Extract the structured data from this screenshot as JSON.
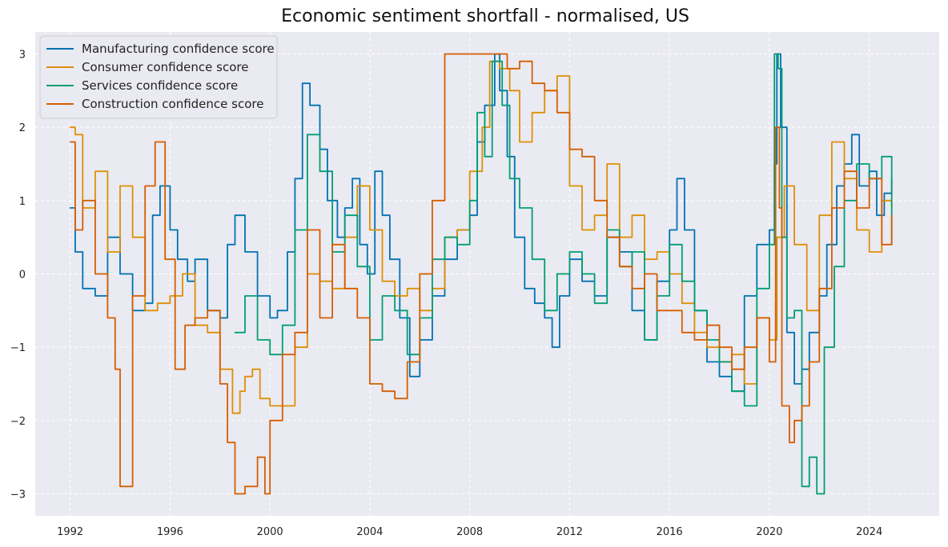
{
  "chart_data": {
    "type": "line",
    "title": "Economic sentiment shortfall - normalised, US",
    "xlabel": "",
    "ylabel": "",
    "xlim": [
      1990.6,
      2026.8
    ],
    "ylim": [
      -3.3,
      3.3
    ],
    "x_ticks": [
      1992,
      1996,
      2000,
      2004,
      2008,
      2012,
      2016,
      2020,
      2024
    ],
    "y_ticks": [
      3,
      2,
      1,
      0,
      -1,
      -2,
      -3
    ],
    "y_tick_labels": [
      "3",
      "2",
      "1",
      "0",
      "−1",
      "−2",
      "−3"
    ],
    "grid": true,
    "legend_position": "top-left",
    "background_color": "#eaeaf2",
    "series": [
      {
        "name": "Manufacturing confidence score",
        "color": "#0072b2",
        "x": [
          1992.0,
          1992.2,
          1992.5,
          1993.0,
          1993.5,
          1994.0,
          1994.5,
          1995.0,
          1995.3,
          1995.6,
          1996.0,
          1996.3,
          1996.7,
          1997.0,
          1997.5,
          1998.0,
          1998.3,
          1998.6,
          1999.0,
          1999.5,
          2000.0,
          2000.3,
          2000.7,
          2001.0,
          2001.3,
          2001.6,
          2002.0,
          2002.3,
          2002.7,
          2003.0,
          2003.3,
          2003.6,
          2003.9,
          2004.2,
          2004.5,
          2004.8,
          2005.2,
          2005.6,
          2006.0,
          2006.5,
          2007.0,
          2007.5,
          2008.0,
          2008.3,
          2008.6,
          2009.0,
          2009.2,
          2009.5,
          2009.8,
          2010.2,
          2010.6,
          2011.0,
          2011.3,
          2011.6,
          2012.0,
          2012.5,
          2013.0,
          2013.5,
          2014.0,
          2014.5,
          2015.0,
          2015.5,
          2016.0,
          2016.3,
          2016.6,
          2017.0,
          2017.5,
          2018.0,
          2018.5,
          2019.0,
          2019.5,
          2020.0,
          2020.2,
          2020.3,
          2020.45,
          2020.7,
          2021.0,
          2021.3,
          2021.6,
          2022.0,
          2022.3,
          2022.7,
          2023.0,
          2023.3,
          2023.6,
          2024.0,
          2024.3,
          2024.6,
          2024.9
        ],
        "values": [
          0.9,
          0.3,
          -0.2,
          -0.3,
          0.5,
          0.0,
          -0.5,
          -0.4,
          0.8,
          1.2,
          0.6,
          0.2,
          -0.1,
          0.2,
          -0.5,
          -0.6,
          0.4,
          0.8,
          0.3,
          -0.3,
          -0.6,
          -0.5,
          0.3,
          1.3,
          2.6,
          2.3,
          1.7,
          1.0,
          0.5,
          0.9,
          1.3,
          0.4,
          0.0,
          1.4,
          0.8,
          0.2,
          -0.6,
          -1.4,
          -0.9,
          -0.3,
          0.2,
          0.6,
          0.8,
          1.8,
          2.3,
          3.0,
          2.5,
          1.6,
          0.5,
          -0.2,
          -0.4,
          -0.6,
          -1.0,
          -0.3,
          0.2,
          -0.1,
          -0.3,
          0.5,
          0.3,
          -0.5,
          -0.9,
          -0.1,
          0.6,
          1.3,
          0.6,
          -0.5,
          -1.2,
          -1.4,
          -1.6,
          -0.3,
          0.4,
          0.6,
          1.5,
          3.0,
          2.0,
          -0.8,
          -1.5,
          -1.3,
          -0.8,
          -0.3,
          0.4,
          1.2,
          1.5,
          1.9,
          1.2,
          1.4,
          0.8,
          1.1,
          1.3
        ]
      },
      {
        "name": "Consumer confidence score",
        "color": "#de8f05",
        "x": [
          1992.0,
          1992.2,
          1992.5,
          1993.0,
          1993.5,
          1994.0,
          1994.5,
          1995.0,
          1995.5,
          1996.0,
          1996.5,
          1997.0,
          1997.5,
          1998.0,
          1998.5,
          1998.8,
          1999.0,
          1999.3,
          1999.6,
          2000.0,
          2000.5,
          2001.0,
          2001.5,
          2002.0,
          2002.5,
          2003.0,
          2003.5,
          2004.0,
          2004.5,
          2005.0,
          2005.5,
          2006.0,
          2006.5,
          2007.0,
          2007.5,
          2008.0,
          2008.5,
          2008.8,
          2009.2,
          2009.6,
          2010.0,
          2010.5,
          2011.0,
          2011.5,
          2012.0,
          2012.5,
          2013.0,
          2013.5,
          2014.0,
          2014.5,
          2015.0,
          2015.5,
          2016.0,
          2016.5,
          2017.0,
          2017.5,
          2018.0,
          2018.5,
          2019.0,
          2019.5,
          2020.0,
          2020.3,
          2020.6,
          2021.0,
          2021.5,
          2022.0,
          2022.5,
          2023.0,
          2023.5,
          2024.0,
          2024.5,
          2024.9
        ],
        "values": [
          2.0,
          1.9,
          0.9,
          1.4,
          0.3,
          1.2,
          0.5,
          -0.5,
          -0.4,
          -0.3,
          0.0,
          -0.7,
          -0.8,
          -1.3,
          -1.9,
          -1.6,
          -1.4,
          -1.3,
          -1.7,
          -1.8,
          -1.8,
          -1.0,
          0.0,
          -0.1,
          -0.2,
          0.5,
          1.2,
          0.6,
          -0.1,
          -0.3,
          -0.2,
          -0.5,
          -0.2,
          0.5,
          0.6,
          1.4,
          2.0,
          2.9,
          2.8,
          2.5,
          1.8,
          2.2,
          2.5,
          2.7,
          1.2,
          0.6,
          0.8,
          1.5,
          0.5,
          0.8,
          0.2,
          0.3,
          0.0,
          -0.4,
          -0.8,
          -1.0,
          -1.2,
          -1.1,
          -1.5,
          -0.6,
          -0.9,
          0.5,
          1.2,
          0.4,
          -0.5,
          0.8,
          1.8,
          1.3,
          0.6,
          0.3,
          1.0,
          0.9
        ]
      },
      {
        "name": "Services confidence score",
        "color": "#029e73",
        "x": [
          1998.6,
          1999.0,
          1999.5,
          2000.0,
          2000.5,
          2001.0,
          2001.5,
          2002.0,
          2002.5,
          2003.0,
          2003.5,
          2004.0,
          2004.5,
          2005.0,
          2005.5,
          2006.0,
          2006.5,
          2007.0,
          2007.5,
          2008.0,
          2008.3,
          2008.6,
          2008.9,
          2009.3,
          2009.6,
          2010.0,
          2010.5,
          2011.0,
          2011.5,
          2012.0,
          2012.5,
          2013.0,
          2013.5,
          2014.0,
          2014.5,
          2015.0,
          2015.5,
          2016.0,
          2016.5,
          2017.0,
          2017.5,
          2018.0,
          2018.5,
          2019.0,
          2019.5,
          2020.0,
          2020.2,
          2020.35,
          2020.5,
          2020.7,
          2021.0,
          2021.3,
          2021.6,
          2021.9,
          2022.2,
          2022.6,
          2023.0,
          2023.5,
          2024.0,
          2024.5,
          2024.9
        ],
        "values": [
          -0.8,
          -0.3,
          -0.9,
          -1.1,
          -0.7,
          0.6,
          1.9,
          1.4,
          0.3,
          0.8,
          0.1,
          -0.9,
          -0.3,
          -0.5,
          -1.1,
          -0.6,
          0.2,
          0.5,
          0.4,
          1.0,
          2.2,
          1.6,
          2.9,
          2.3,
          1.3,
          0.9,
          0.2,
          -0.5,
          0.0,
          0.3,
          0.0,
          -0.4,
          0.6,
          0.1,
          0.3,
          -0.9,
          -0.3,
          0.4,
          -0.1,
          -0.5,
          -0.9,
          -1.2,
          -1.6,
          -1.8,
          -0.2,
          0.4,
          3.0,
          2.8,
          0.5,
          -0.6,
          -0.5,
          -2.9,
          -2.5,
          -3.0,
          -1.0,
          0.1,
          1.0,
          1.5,
          1.3,
          1.6,
          0.4
        ]
      },
      {
        "name": "Construction confidence score",
        "color": "#d55e00",
        "x": [
          1992.0,
          1992.2,
          1992.5,
          1993.0,
          1993.5,
          1993.8,
          1994.0,
          1994.5,
          1995.0,
          1995.4,
          1995.8,
          1996.2,
          1996.6,
          1997.0,
          1997.5,
          1998.0,
          1998.3,
          1998.6,
          1999.0,
          1999.5,
          1999.8,
          2000.0,
          2000.5,
          2001.0,
          2001.5,
          2002.0,
          2002.5,
          2003.0,
          2003.5,
          2004.0,
          2004.5,
          2005.0,
          2005.5,
          2006.0,
          2006.5,
          2007.0,
          2007.5,
          2008.0,
          2008.5,
          2009.0,
          2009.5,
          2010.0,
          2010.5,
          2011.0,
          2011.5,
          2012.0,
          2012.5,
          2013.0,
          2013.5,
          2014.0,
          2014.5,
          2015.0,
          2015.5,
          2016.0,
          2016.5,
          2017.0,
          2017.5,
          2018.0,
          2018.5,
          2019.0,
          2019.5,
          2020.0,
          2020.25,
          2020.4,
          2020.5,
          2020.8,
          2021.0,
          2021.3,
          2021.6,
          2022.0,
          2022.5,
          2023.0,
          2023.5,
          2024.0,
          2024.5,
          2024.9
        ],
        "values": [
          1.8,
          0.6,
          1.0,
          0.0,
          -0.6,
          -1.3,
          -2.9,
          -0.3,
          1.2,
          1.8,
          0.2,
          -1.3,
          -0.7,
          -0.6,
          -0.5,
          -1.5,
          -2.3,
          -3.0,
          -2.9,
          -2.5,
          -3.0,
          -2.0,
          -1.1,
          -0.8,
          0.6,
          -0.6,
          0.4,
          -0.2,
          -0.6,
          -1.5,
          -1.6,
          -1.7,
          -1.2,
          0.0,
          1.0,
          3.0,
          3.0,
          3.0,
          3.0,
          3.0,
          2.8,
          2.9,
          2.6,
          2.5,
          2.2,
          1.7,
          1.6,
          1.0,
          0.5,
          0.1,
          -0.2,
          0.0,
          -0.5,
          -0.5,
          -0.8,
          -0.9,
          -0.7,
          -1.0,
          -1.3,
          -1.0,
          -0.6,
          -1.2,
          2.0,
          0.9,
          -1.8,
          -2.3,
          -2.0,
          -1.8,
          -1.2,
          -0.2,
          0.9,
          1.4,
          0.9,
          1.3,
          0.4,
          0.8
        ]
      }
    ]
  }
}
